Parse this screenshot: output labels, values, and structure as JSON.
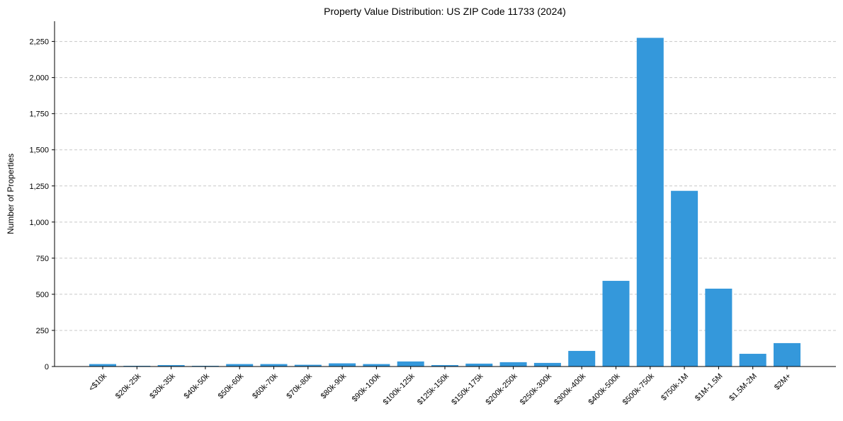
{
  "chart_data": {
    "type": "bar",
    "title": "Property Value Distribution: US ZIP Code 11733 (2024)",
    "xlabel": "",
    "ylabel": "Number of Properties",
    "ylim": [
      0,
      2390
    ],
    "yticks": [
      0,
      250,
      500,
      750,
      1000,
      1250,
      1500,
      1750,
      2000,
      2250
    ],
    "ytick_labels": [
      "0",
      "250",
      "500",
      "750",
      "1,000",
      "1,250",
      "1,500",
      "1,750",
      "2,000",
      "2,250"
    ],
    "grid": "horizontal dashed",
    "color": "#3498db",
    "categories": [
      "<$10k",
      "$20k-25k",
      "$30k-35k",
      "$40k-50k",
      "$50k-60k",
      "$60k-70k",
      "$70k-80k",
      "$80k-90k",
      "$90k-100k",
      "$100k-125k",
      "$125k-150k",
      "$150k-175k",
      "$200k-250k",
      "$250k-300k",
      "$300k-400k",
      "$400k-500k",
      "$500k-750k",
      "$750k-1M",
      "$1M-1.5M",
      "$1.5M-2M",
      "$2M+"
    ],
    "values": [
      17,
      5,
      10,
      5,
      17,
      17,
      12,
      22,
      17,
      35,
      10,
      20,
      30,
      25,
      108,
      593,
      2275,
      1216,
      539,
      88,
      162
    ]
  }
}
